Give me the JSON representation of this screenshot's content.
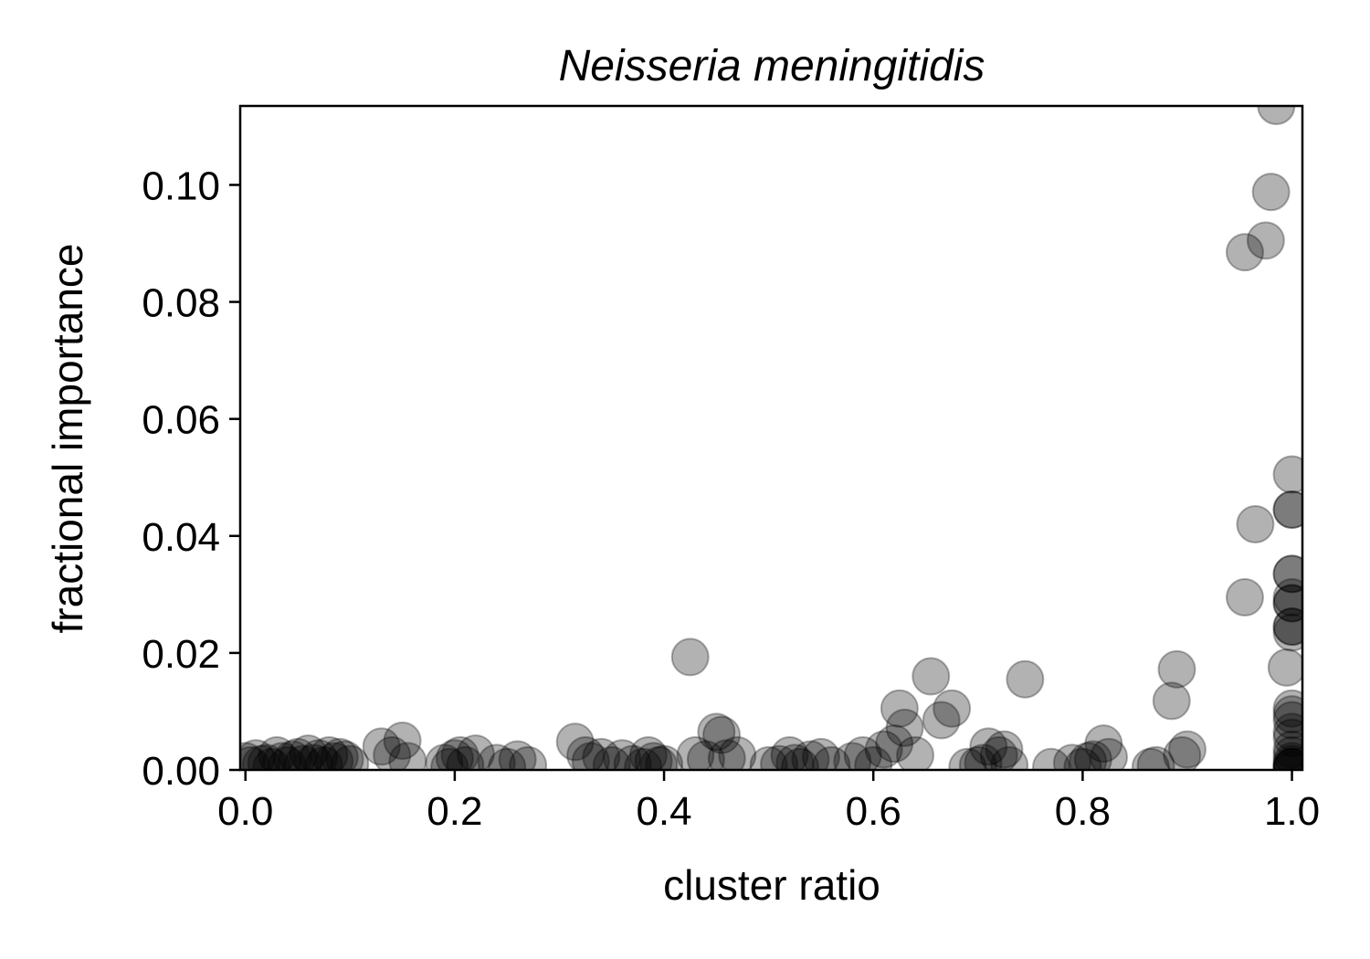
{
  "chart_data": {
    "type": "scatter",
    "title": "Neisseria meningitidis",
    "xlabel": "cluster ratio",
    "ylabel": "fractional importance",
    "xlim": [
      -0.005,
      1.01
    ],
    "ylim": [
      0.0,
      0.1135
    ],
    "xticks": [
      0.0,
      0.2,
      0.4,
      0.6,
      0.8,
      1.0
    ],
    "xtick_labels": [
      "0.0",
      "0.2",
      "0.4",
      "0.6",
      "0.8",
      "1.0"
    ],
    "yticks": [
      0.0,
      0.02,
      0.04,
      0.06,
      0.08,
      0.1
    ],
    "ytick_labels": [
      "0.00",
      "0.02",
      "0.04",
      "0.06",
      "0.08",
      "0.10"
    ],
    "grid": false,
    "marker_color": "#000000",
    "marker_alpha": 0.3,
    "series": [
      {
        "points": [
          [
            0.0,
            0.0015
          ],
          [
            0.005,
            0.0008
          ],
          [
            0.01,
            0.002
          ],
          [
            0.015,
            0.001
          ],
          [
            0.02,
            0.0012
          ],
          [
            0.025,
            0.0005
          ],
          [
            0.03,
            0.0025
          ],
          [
            0.035,
            0.0015
          ],
          [
            0.04,
            0.0008
          ],
          [
            0.045,
            0.0018
          ],
          [
            0.05,
            0.0022
          ],
          [
            0.055,
            0.001
          ],
          [
            0.06,
            0.0028
          ],
          [
            0.065,
            0.0012
          ],
          [
            0.07,
            0.002
          ],
          [
            0.075,
            0.0008
          ],
          [
            0.08,
            0.0025
          ],
          [
            0.085,
            0.0015
          ],
          [
            0.09,
            0.0022
          ],
          [
            0.095,
            0.0018
          ],
          [
            0.1,
            0.001
          ],
          [
            0.13,
            0.004
          ],
          [
            0.14,
            0.0025
          ],
          [
            0.15,
            0.005
          ],
          [
            0.155,
            0.0015
          ],
          [
            0.19,
            0.0012
          ],
          [
            0.195,
            0.0005
          ],
          [
            0.2,
            0.002
          ],
          [
            0.205,
            0.0025
          ],
          [
            0.21,
            0.0008
          ],
          [
            0.22,
            0.0028
          ],
          [
            0.24,
            0.0012
          ],
          [
            0.25,
            0.0005
          ],
          [
            0.26,
            0.0018
          ],
          [
            0.27,
            0.0008
          ],
          [
            0.315,
            0.0048
          ],
          [
            0.325,
            0.0025
          ],
          [
            0.33,
            0.0015
          ],
          [
            0.34,
            0.0022
          ],
          [
            0.35,
            0.0008
          ],
          [
            0.36,
            0.002
          ],
          [
            0.37,
            0.001
          ],
          [
            0.38,
            0.0005
          ],
          [
            0.385,
            0.0025
          ],
          [
            0.39,
            0.0015
          ],
          [
            0.395,
            0.0008
          ],
          [
            0.4,
            0.001
          ],
          [
            0.425,
            0.0193
          ],
          [
            0.43,
            0.0025
          ],
          [
            0.44,
            0.0018
          ],
          [
            0.45,
            0.0065
          ],
          [
            0.455,
            0.006
          ],
          [
            0.46,
            0.002
          ],
          [
            0.47,
            0.0025
          ],
          [
            0.5,
            0.0008
          ],
          [
            0.51,
            0.001
          ],
          [
            0.52,
            0.0025
          ],
          [
            0.525,
            0.0012
          ],
          [
            0.53,
            0.0005
          ],
          [
            0.54,
            0.0018
          ],
          [
            0.55,
            0.0022
          ],
          [
            0.56,
            0.0008
          ],
          [
            0.58,
            0.0015
          ],
          [
            0.59,
            0.0025
          ],
          [
            0.6,
            0.0008
          ],
          [
            0.61,
            0.0035
          ],
          [
            0.62,
            0.0045
          ],
          [
            0.625,
            0.0105
          ],
          [
            0.63,
            0.0072
          ],
          [
            0.64,
            0.0025
          ],
          [
            0.655,
            0.016
          ],
          [
            0.665,
            0.0085
          ],
          [
            0.675,
            0.0105
          ],
          [
            0.69,
            0.0005
          ],
          [
            0.7,
            0.0008
          ],
          [
            0.705,
            0.0012
          ],
          [
            0.71,
            0.004
          ],
          [
            0.72,
            0.0025
          ],
          [
            0.725,
            0.0035
          ],
          [
            0.73,
            0.0008
          ],
          [
            0.745,
            0.0155
          ],
          [
            0.77,
            0.0005
          ],
          [
            0.79,
            0.0012
          ],
          [
            0.8,
            0.0005
          ],
          [
            0.805,
            0.0015
          ],
          [
            0.81,
            0.0018
          ],
          [
            0.82,
            0.0045
          ],
          [
            0.825,
            0.0022
          ],
          [
            0.865,
            0.0005
          ],
          [
            0.87,
            0.0008
          ],
          [
            0.885,
            0.0118
          ],
          [
            0.89,
            0.0172
          ],
          [
            0.895,
            0.0025
          ],
          [
            0.9,
            0.0035
          ],
          [
            0.955,
            0.0885
          ],
          [
            0.955,
            0.0295
          ],
          [
            0.965,
            0.042
          ],
          [
            0.975,
            0.0905
          ],
          [
            0.98,
            0.0988
          ],
          [
            0.985,
            0.1135
          ],
          [
            0.995,
            0.0175
          ],
          [
            1.0,
            0.0505
          ],
          [
            1.0,
            0.0445
          ],
          [
            1.0,
            0.0445
          ],
          [
            1.0,
            0.0335
          ],
          [
            1.0,
            0.0335
          ],
          [
            1.0,
            0.0295
          ],
          [
            1.0,
            0.0285
          ],
          [
            1.0,
            0.0285
          ],
          [
            1.0,
            0.0245
          ],
          [
            1.0,
            0.0245
          ],
          [
            1.0,
            0.0235
          ],
          [
            1.0,
            0.0105
          ],
          [
            1.0,
            0.0095
          ],
          [
            1.0,
            0.0085
          ],
          [
            1.0,
            0.0065
          ],
          [
            1.0,
            0.0055
          ],
          [
            1.0,
            0.0035
          ],
          [
            1.0,
            0.0025
          ],
          [
            1.0,
            0.0015
          ],
          [
            1.0,
            0.001
          ],
          [
            1.0,
            0.0005
          ],
          [
            1.0,
            0.0005
          ],
          [
            1.0,
            0.0005
          ],
          [
            1.0,
            0.0
          ]
        ]
      }
    ]
  }
}
